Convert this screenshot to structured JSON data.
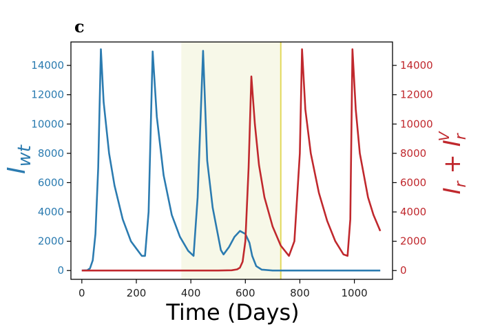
{
  "panel_label": "c",
  "chart_data": {
    "type": "line",
    "xlabel": "Time (Days)",
    "ylabel_left": "I_wt",
    "ylabel_right": "I_r + I_r^V",
    "xlim": [
      -40,
      1140
    ],
    "ylim": [
      -600,
      15600
    ],
    "x_ticks": [
      0,
      200,
      400,
      600,
      800,
      1000
    ],
    "y_ticks": [
      0,
      2000,
      4000,
      6000,
      8000,
      10000,
      12000,
      14000
    ],
    "colors": {
      "wt": "#2b7bb0",
      "resistant": "#c0282d",
      "shade": "#f7f8e8",
      "vline": "#e3d85a"
    },
    "shaded_region": [
      365,
      730
    ],
    "vertical_line": 730,
    "series": [
      {
        "key": "wt",
        "axis": "left",
        "x": [
          0,
          20,
          30,
          40,
          50,
          60,
          70,
          80,
          100,
          120,
          150,
          180,
          200,
          220,
          232,
          245,
          260,
          275,
          300,
          330,
          360,
          390,
          410,
          425,
          445,
          460,
          480,
          510,
          520,
          540,
          560,
          580,
          600,
          615,
          625,
          640,
          660,
          700,
          800,
          900,
          1000,
          1095
        ],
        "y": [
          0,
          20,
          150,
          700,
          2500,
          7000,
          15100,
          11500,
          8000,
          5800,
          3500,
          2000,
          1500,
          1000,
          1000,
          4000,
          14950,
          10500,
          6500,
          3800,
          2300,
          1350,
          1000,
          5000,
          15000,
          7500,
          4300,
          1400,
          1100,
          1600,
          2300,
          2700,
          2500,
          1900,
          1000,
          300,
          60,
          0,
          0,
          0,
          0,
          0
        ]
      },
      {
        "key": "resistant",
        "axis": "right",
        "x": [
          0,
          100,
          200,
          300,
          400,
          500,
          550,
          570,
          580,
          590,
          600,
          612,
          622,
          635,
          650,
          670,
          700,
          730,
          760,
          780,
          800,
          808,
          820,
          840,
          870,
          900,
          930,
          960,
          975,
          985,
          993,
          1005,
          1020,
          1050,
          1070,
          1095
        ],
        "y": [
          0,
          0,
          0,
          0,
          0,
          0,
          20,
          80,
          200,
          600,
          2000,
          7000,
          13250,
          10000,
          7200,
          5000,
          3000,
          1700,
          1000,
          2000,
          8000,
          15100,
          11000,
          8000,
          5300,
          3400,
          2000,
          1100,
          1000,
          3500,
          15100,
          11000,
          8000,
          5000,
          3800,
          2700
        ]
      }
    ]
  }
}
